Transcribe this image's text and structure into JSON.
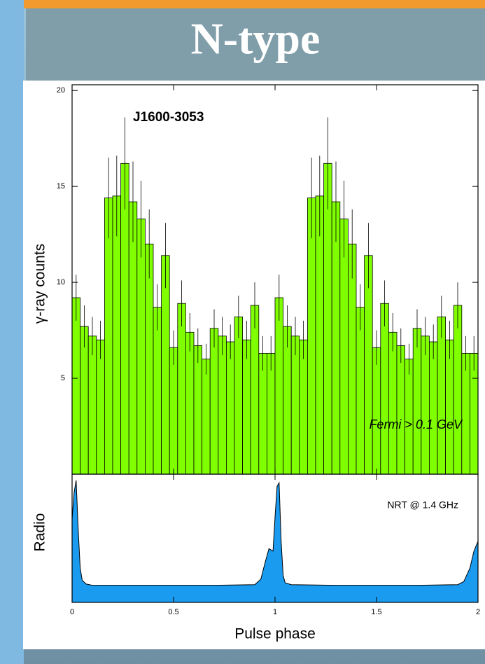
{
  "slide": {
    "title": "N-type"
  },
  "chart_data": [
    {
      "type": "histogram",
      "title": "J1600-3053",
      "annotation": "Fermi > 0.1 GeV",
      "ylabel": "γ-ray counts",
      "bins": [
        0,
        0.04,
        0.08,
        0.12,
        0.16,
        0.2,
        0.24,
        0.28,
        0.32,
        0.36,
        0.4,
        0.44,
        0.48,
        0.52,
        0.56,
        0.6,
        0.64,
        0.68,
        0.72,
        0.76,
        0.8,
        0.84,
        0.88,
        0.92,
        0.96,
        1,
        1.04,
        1.08,
        1.12,
        1.16,
        1.2,
        1.24,
        1.28,
        1.32,
        1.36,
        1.4,
        1.44,
        1.48,
        1.52,
        1.56,
        1.6,
        1.64,
        1.68,
        1.72,
        1.76,
        1.8,
        1.84,
        1.88,
        1.92,
        1.96,
        2
      ],
      "values": [
        9.2,
        7.7,
        7.2,
        7.0,
        14.4,
        14.5,
        16.2,
        14.2,
        13.3,
        12.0,
        8.7,
        11.4,
        6.6,
        8.9,
        7.4,
        6.7,
        6.0,
        7.6,
        7.2,
        6.9,
        8.2,
        7.0,
        8.8,
        6.3,
        6.3,
        9.2,
        7.7,
        7.2,
        7.0,
        14.4,
        14.5,
        16.2,
        14.2,
        13.3,
        12.0,
        8.7,
        11.4,
        6.6,
        8.9,
        7.4,
        6.7,
        6.0,
        7.6,
        7.2,
        6.9,
        8.2,
        7.0,
        8.8,
        6.3,
        6.3
      ],
      "errors": [
        1.2,
        1.1,
        1.0,
        1.0,
        2.1,
        2.1,
        2.4,
        2.1,
        2.0,
        1.8,
        1.2,
        1.7,
        0.9,
        1.2,
        1.0,
        0.9,
        0.8,
        1.0,
        1.0,
        0.9,
        1.1,
        1.0,
        1.2,
        0.9,
        0.9,
        1.2,
        1.1,
        1.0,
        1.0,
        2.1,
        2.1,
        2.4,
        2.1,
        2.0,
        1.8,
        1.2,
        1.7,
        0.9,
        1.2,
        1.0,
        0.9,
        0.8,
        1.0,
        1.0,
        0.9,
        1.1,
        1.0,
        1.2,
        0.9,
        0.9
      ],
      "color": "#80ff00",
      "xlim": [
        0,
        2
      ],
      "xticks": [
        0,
        0.5,
        1,
        1.5,
        2
      ],
      "ylim": [
        0,
        20.3
      ],
      "yticks": [
        5,
        10,
        15,
        20
      ]
    },
    {
      "type": "area",
      "annotation": "NRT @ 1.4 GHz",
      "ylabel": "Radio",
      "xlabel": "Pulse phase",
      "x": [
        0,
        0.01,
        0.02,
        0.03,
        0.04,
        0.05,
        0.07,
        0.1,
        0.3,
        0.5,
        0.7,
        0.9,
        0.93,
        0.95,
        0.97,
        0.99,
        1.0,
        1.01,
        1.02,
        1.03,
        1.04,
        1.05,
        1.08,
        1.3,
        1.5,
        1.7,
        1.9,
        1.93,
        1.96,
        1.98,
        2.0
      ],
      "values": [
        0.68,
        0.9,
        1.0,
        0.6,
        0.28,
        0.18,
        0.15,
        0.14,
        0.14,
        0.14,
        0.14,
        0.145,
        0.19,
        0.32,
        0.44,
        0.42,
        0.7,
        0.95,
        0.98,
        0.5,
        0.22,
        0.16,
        0.145,
        0.14,
        0.14,
        0.14,
        0.145,
        0.17,
        0.28,
        0.42,
        0.5
      ],
      "color": "#1a9bf0",
      "xlim": [
        0,
        2
      ],
      "xticks": [
        0,
        0.5,
        1,
        1.5,
        2
      ],
      "ylim": [
        0,
        1.05
      ]
    }
  ]
}
